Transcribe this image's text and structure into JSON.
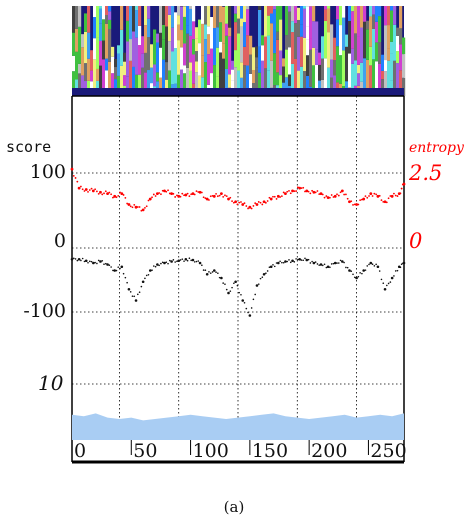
{
  "caption": "(a)",
  "labels": {
    "score": "score",
    "entropy": "entropy",
    "ten": "10"
  },
  "colors": {
    "entropy": "#ff0000",
    "score": "#111111",
    "coverage": "#a9cdf3",
    "gridline": "#000000",
    "axis": "#000000"
  },
  "chart_data": {
    "type": "line",
    "panels": [
      "sequence-logo",
      "entropy-and-score",
      "coverage"
    ],
    "x": {
      "ticks": [
        0,
        50,
        100,
        150,
        200,
        250
      ],
      "range": [
        0,
        280
      ],
      "gridlines": [
        40,
        90,
        140,
        190,
        240
      ]
    },
    "left_axis": {
      "label": "score",
      "ticks": [
        {
          "value": 100,
          "label": "100"
        },
        {
          "value": 0,
          "label": "0"
        },
        {
          "value": -100,
          "label": "-100"
        }
      ],
      "range": [
        -170,
        130
      ]
    },
    "right_axis": {
      "label": "entropy",
      "ticks": [
        {
          "value": 2.5,
          "label": "2.5"
        },
        {
          "value": 0,
          "label": "0"
        }
      ]
    },
    "coverage_axis": {
      "ticks": [
        {
          "value": 10,
          "label": "10"
        }
      ]
    },
    "series": [
      {
        "kind": "entropy",
        "color": "#ff0000",
        "x": [
          0,
          6,
          12,
          18,
          24,
          30,
          36,
          42,
          48,
          54,
          60,
          66,
          72,
          78,
          84,
          90,
          96,
          102,
          108,
          114,
          120,
          126,
          132,
          138,
          144,
          150,
          156,
          162,
          168,
          174,
          180,
          186,
          192,
          198,
          204,
          210,
          216,
          222,
          228,
          234,
          240,
          246,
          252,
          258,
          264,
          270,
          276,
          280
        ],
        "values": [
          2.9,
          2.2,
          2.15,
          2.1,
          2.05,
          2.0,
          1.9,
          2.0,
          1.6,
          1.5,
          1.4,
          1.8,
          2.0,
          2.1,
          2.0,
          1.9,
          1.95,
          2.0,
          2.05,
          1.8,
          1.9,
          2.0,
          1.8,
          1.7,
          1.6,
          1.5,
          1.6,
          1.7,
          1.8,
          1.9,
          2.0,
          2.1,
          2.2,
          2.1,
          2.05,
          2.0,
          1.85,
          1.9,
          2.1,
          1.7,
          1.6,
          1.8,
          2.0,
          1.9,
          1.7,
          1.9,
          2.0,
          2.35
        ]
      },
      {
        "kind": "score",
        "color": "#111111",
        "x": [
          0,
          6,
          12,
          18,
          24,
          30,
          36,
          42,
          48,
          54,
          60,
          66,
          72,
          78,
          84,
          90,
          96,
          102,
          108,
          114,
          120,
          126,
          132,
          138,
          144,
          150,
          156,
          162,
          168,
          174,
          180,
          186,
          192,
          198,
          204,
          210,
          216,
          222,
          228,
          234,
          240,
          246,
          252,
          258,
          264,
          270,
          276,
          280
        ],
        "values": [
          -15,
          -15,
          -17,
          -20,
          -18,
          -22,
          -30,
          -25,
          -55,
          -70,
          -45,
          -30,
          -22,
          -20,
          -18,
          -17,
          -15,
          -16,
          -20,
          -35,
          -30,
          -40,
          -60,
          -45,
          -70,
          -90,
          -50,
          -35,
          -25,
          -20,
          -18,
          -17,
          -15,
          -16,
          -20,
          -22,
          -25,
          -20,
          -18,
          -30,
          -40,
          -30,
          -20,
          -25,
          -55,
          -40,
          -25,
          -20
        ]
      },
      {
        "kind": "coverage",
        "color": "#a9cdf3",
        "x": [
          0,
          10,
          20,
          30,
          40,
          50,
          60,
          70,
          80,
          90,
          100,
          110,
          120,
          130,
          140,
          150,
          160,
          170,
          180,
          190,
          200,
          210,
          220,
          230,
          240,
          250,
          260,
          270,
          280
        ],
        "values": [
          0.9,
          0.85,
          0.95,
          0.8,
          0.75,
          0.8,
          0.7,
          0.75,
          0.8,
          0.85,
          0.9,
          0.85,
          0.8,
          0.75,
          0.8,
          0.85,
          0.9,
          0.95,
          0.85,
          0.8,
          0.75,
          0.8,
          0.85,
          0.9,
          0.8,
          0.85,
          0.9,
          0.85,
          0.95
        ]
      }
    ]
  }
}
